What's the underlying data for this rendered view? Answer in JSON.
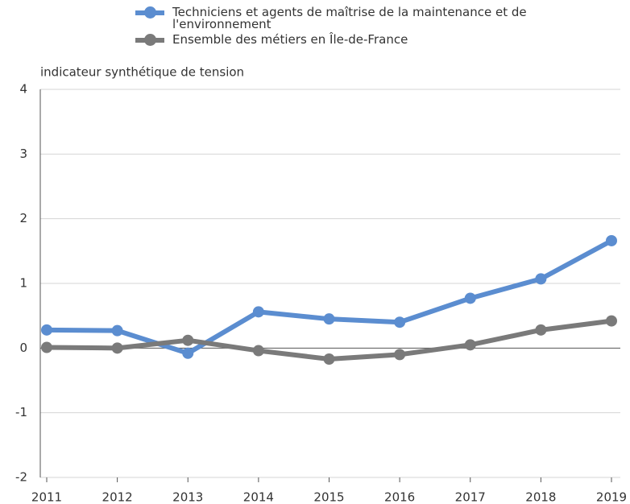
{
  "chart_data": {
    "type": "line",
    "y_label": "indicateur synthétique de tension",
    "categories": [
      "2011",
      "2012",
      "2013",
      "2014",
      "2015",
      "2016",
      "2017",
      "2018",
      "2019"
    ],
    "series": [
      {
        "name": "Techniciens et agents de maîtrise de la maintenance et de l'environnement",
        "color": "#5b8dd0",
        "values": [
          0.28,
          0.27,
          -0.08,
          0.56,
          0.45,
          0.4,
          0.77,
          1.07,
          1.66
        ]
      },
      {
        "name": "Ensemble des métiers en Île-de-France",
        "color": "#7a7a7a",
        "values": [
          0.01,
          0.0,
          0.12,
          -0.04,
          -0.17,
          -0.1,
          0.05,
          0.28,
          0.42
        ]
      }
    ],
    "ylim": [
      -2,
      4
    ],
    "yticks": [
      -2,
      -1,
      0,
      1,
      2,
      3,
      4
    ],
    "grid": true
  }
}
